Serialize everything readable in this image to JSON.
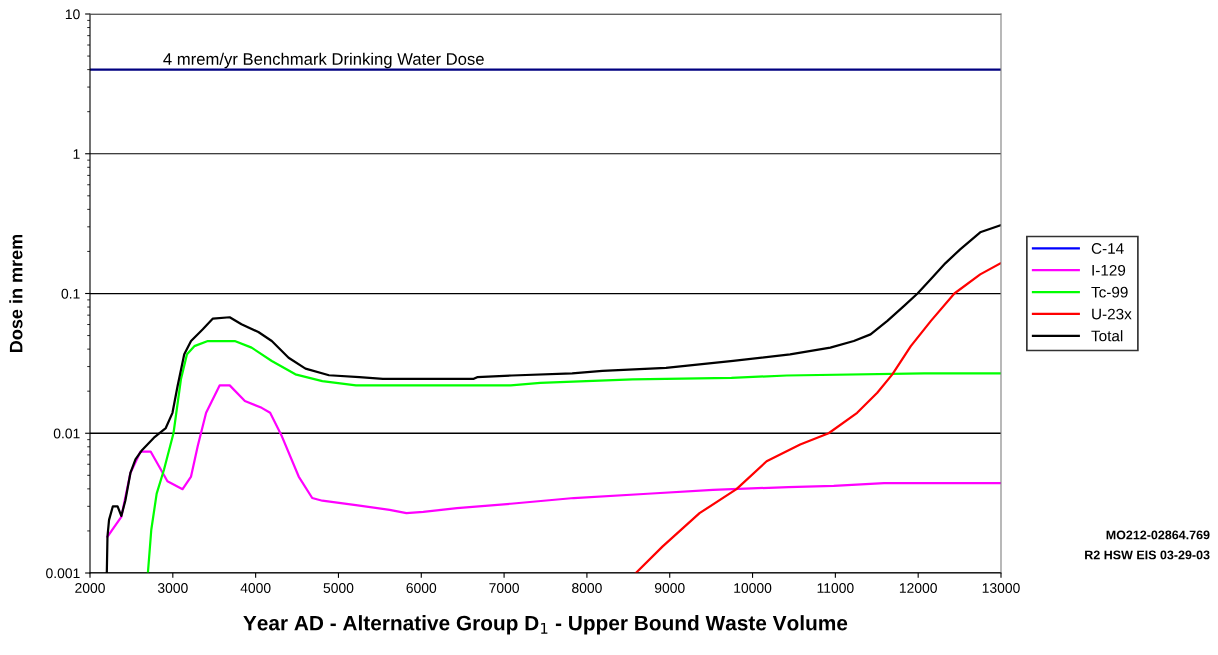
{
  "chart_data": {
    "type": "line",
    "xlabel": "Year AD - Alternative Group D$_{1}$ - Upper Bound Waste Volume",
    "ylabel": "Dose in mrem",
    "log": "y",
    "grid": "y",
    "legend": "right",
    "marker": "none",
    "line_style": "solid",
    "xlim": [
      2000,
      13000
    ],
    "xticks": [
      2000,
      3000,
      4000,
      5000,
      6000,
      7000,
      8000,
      9000,
      10000,
      11000,
      12000,
      13000
    ],
    "ylim": [
      0.001,
      10
    ],
    "yticks": [
      0.001,
      0.01,
      0.1,
      1,
      10
    ],
    "ref_lines": [
      {
        "axis": "y",
        "value": 4,
        "label": "4 mrem/yr Benchmark Drinking Water Dose",
        "color": "#000080"
      }
    ],
    "annotations": [
      "MO212-02864.769",
      "R2 HSW EIS 03-29-03"
    ],
    "series": [
      {
        "name": "C-14",
        "color": "#0000ff"
      },
      {
        "name": "I-129",
        "color": "#ff00ff",
        "x": [
          2211,
          2378,
          2488,
          2610,
          2732,
          2833,
          2935,
          3118,
          3220,
          3301,
          3402,
          3565,
          3687,
          3870,
          4073,
          4175,
          4317,
          4520,
          4683,
          4805,
          5211,
          5618,
          5821,
          6024,
          6431,
          7080,
          7842,
          8733,
          9522,
          10433,
          10980,
          11587,
          13000
        ],
        "values": [
          0.00182,
          0.00252,
          0.0052,
          0.0074,
          0.0074,
          0.0058,
          0.00453,
          0.00398,
          0.0049,
          0.0081,
          0.014,
          0.022,
          0.022,
          0.017,
          0.0152,
          0.014,
          0.0095,
          0.0049,
          0.00344,
          0.00329,
          0.00306,
          0.00283,
          0.00268,
          0.00274,
          0.00291,
          0.00313,
          0.00344,
          0.00369,
          0.00394,
          0.00412,
          0.0042,
          0.0044,
          0.0044
        ]
      },
      {
        "name": "Tc-99",
        "color": "#00ff00",
        "x": [
          2699,
          2740,
          2805,
          2894,
          3008,
          3098,
          3171,
          3260,
          3423,
          3748,
          3951,
          4195,
          4480,
          4805,
          5211,
          7080,
          7437,
          8551,
          9745,
          10413,
          12073,
          13000
        ],
        "values": [
          0.001,
          0.00204,
          0.0037,
          0.0055,
          0.01,
          0.0243,
          0.0367,
          0.042,
          0.0457,
          0.0457,
          0.041,
          0.0329,
          0.0264,
          0.0236,
          0.022,
          0.022,
          0.0229,
          0.0243,
          0.0249,
          0.0259,
          0.0268,
          0.0268
        ]
      },
      {
        "name": "U-23x",
        "color": "#ff0000",
        "x": [
          8591,
          8915,
          9360,
          9806,
          10170,
          10575,
          10919,
          11263,
          11506,
          11688,
          11911,
          12154,
          12437,
          12749,
          12990
        ],
        "values": [
          0.001,
          0.00155,
          0.00268,
          0.00398,
          0.0063,
          0.0083,
          0.01,
          0.014,
          0.0195,
          0.0264,
          0.042,
          0.0637,
          0.1,
          0.137,
          0.164
        ]
      },
      {
        "name": "Total",
        "color": "#000000",
        "x": [
          2203,
          2211,
          2230,
          2276,
          2333,
          2378,
          2427,
          2488,
          2549,
          2630,
          2772,
          2915,
          2996,
          3057,
          3138,
          3220,
          3362,
          3484,
          3687,
          3829,
          4033,
          4195,
          4398,
          4602,
          4886,
          5252,
          5537,
          6634,
          6675,
          7093,
          7822,
          8186,
          8955,
          9765,
          10453,
          10939,
          11223,
          11425,
          11628,
          11830,
          11992,
          12154,
          12330,
          12507,
          12749,
          12990
        ],
        "values": [
          0.001,
          0.00182,
          0.0024,
          0.003,
          0.003,
          0.00256,
          0.0033,
          0.0052,
          0.0065,
          0.0076,
          0.0093,
          0.0109,
          0.014,
          0.0217,
          0.0367,
          0.0457,
          0.0555,
          0.0662,
          0.0676,
          0.0603,
          0.053,
          0.0457,
          0.0347,
          0.029,
          0.026,
          0.0252,
          0.0245,
          0.0245,
          0.0252,
          0.0259,
          0.0268,
          0.0279,
          0.0294,
          0.0329,
          0.0367,
          0.041,
          0.0457,
          0.051,
          0.0637,
          0.0815,
          0.1,
          0.127,
          0.165,
          0.207,
          0.274,
          0.307
        ]
      }
    ]
  }
}
